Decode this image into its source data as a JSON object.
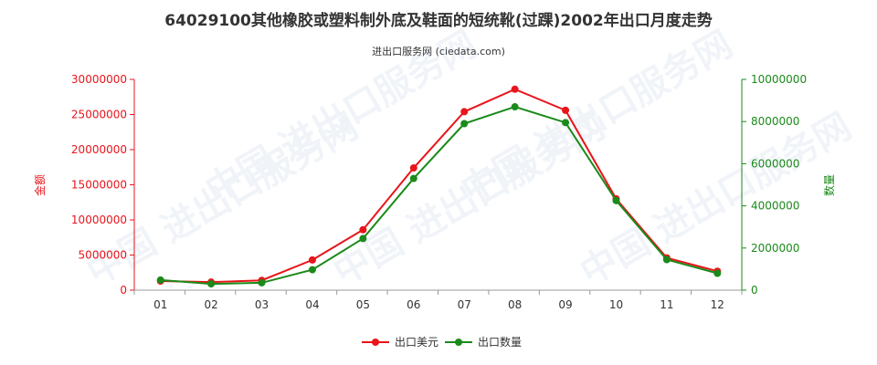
{
  "title": "64029100其他橡胶或塑料制外底及鞋面的短统靴(过踝)2002年出口月度走势",
  "subtitle": "进出口服务网 (ciedata.com)",
  "watermark": "中国 进出口服务网",
  "colors": {
    "value": "#e8151b",
    "quantity": "#1a8a1a",
    "axis": "#333333",
    "grid": "#d8d8d8"
  },
  "chart_data": {
    "type": "line",
    "categories": [
      "01",
      "02",
      "03",
      "04",
      "05",
      "06",
      "07",
      "08",
      "09",
      "10",
      "11",
      "12"
    ],
    "y_left": {
      "label": "金额",
      "ylim": [
        0,
        30000000
      ],
      "ticks": [
        0,
        5000000,
        10000000,
        15000000,
        20000000,
        25000000,
        30000000
      ]
    },
    "y_right": {
      "label": "数量",
      "ylim": [
        0,
        10000000
      ],
      "ticks": [
        0,
        2000000,
        4000000,
        6000000,
        8000000,
        10000000
      ]
    },
    "series": [
      {
        "name": "出口美元",
        "axis": "left",
        "values": [
          1300000,
          1150000,
          1400000,
          4300000,
          8600000,
          17400000,
          25400000,
          28600000,
          25600000,
          13000000,
          4600000,
          2700000
        ]
      },
      {
        "name": "出口数量",
        "axis": "right",
        "values": [
          480000,
          300000,
          350000,
          970000,
          2450000,
          5300000,
          7900000,
          8700000,
          7950000,
          4250000,
          1450000,
          800000
        ]
      }
    ],
    "legend_position": "bottom-center",
    "grid": false
  }
}
